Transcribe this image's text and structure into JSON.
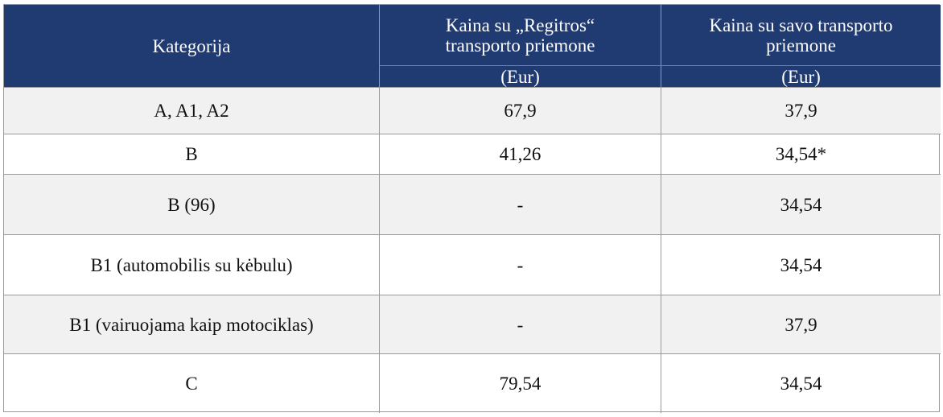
{
  "table": {
    "header": [
      "Kategorija",
      {
        "main": "Kaina su „Regitros“ transporto priemone",
        "unit": "(Eur)"
      },
      {
        "main": "Kaina su savo transporto priemone",
        "unit": "(Eur)"
      }
    ],
    "rows": [
      [
        "A, A1, A2",
        "67,9",
        "37,9"
      ],
      [
        "B",
        "41,26",
        "34,54*"
      ],
      [
        "B (96)",
        "-",
        "34,54"
      ],
      [
        "B1 (automobilis su kėbulu)",
        "-",
        "34,54"
      ],
      [
        "B1 (vairuojama kaip motociklas)",
        "-",
        "37,9"
      ],
      [
        "C",
        "79,54",
        "34,54"
      ]
    ]
  }
}
